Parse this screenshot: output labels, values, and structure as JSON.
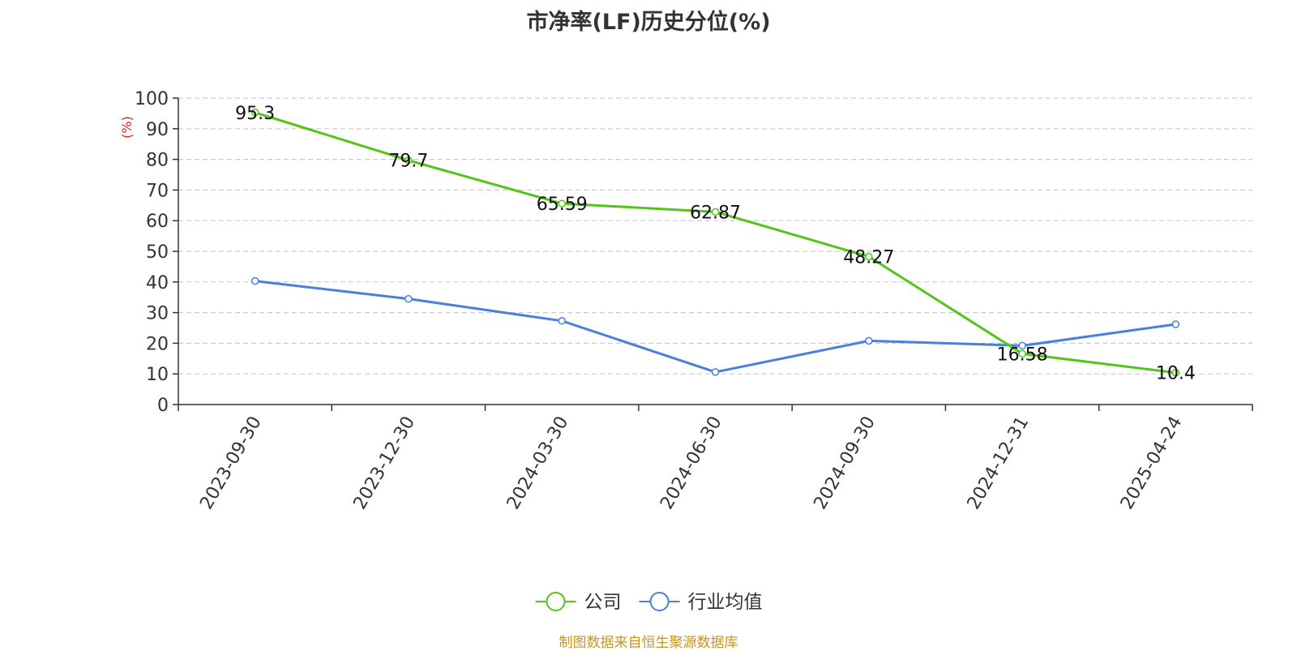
{
  "chart_data": {
    "type": "line",
    "title": "市净率(LF)历史分位(%)",
    "ylabel": "(%)",
    "xlabel": "",
    "ylim": [
      0,
      100
    ],
    "yticks": [
      0,
      10,
      20,
      30,
      40,
      50,
      60,
      70,
      80,
      90,
      100
    ],
    "grid": true,
    "legend_position": "bottom-center",
    "categories": [
      "2023-09-30",
      "2023-12-30",
      "2024-03-30",
      "2024-06-30",
      "2024-09-30",
      "2024-12-31",
      "2025-04-24"
    ],
    "series": [
      {
        "name": "公司",
        "color": "#52c41a",
        "values": [
          95.3,
          79.7,
          65.59,
          62.87,
          48.27,
          16.58,
          10.4
        ],
        "show_labels": true
      },
      {
        "name": "行业均值",
        "color": "#4a7fdc",
        "values": [
          40.3,
          34.5,
          27.3,
          10.6,
          20.8,
          19.2,
          26.2
        ],
        "show_labels": false
      }
    ],
    "source": "制图数据来自恒生聚源数据库"
  }
}
